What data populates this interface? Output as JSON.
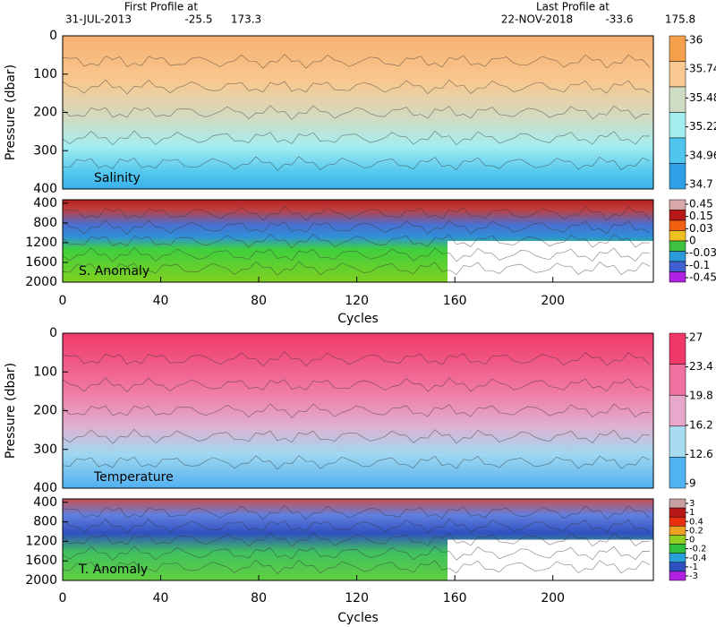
{
  "header": {
    "first_title": "First Profile at",
    "first_date": "31-JUL-2013",
    "first_lat": "-25.5",
    "first_lon": "173.3",
    "last_title": "Last Profile at",
    "last_date": "22-NOV-2018",
    "last_lat": "-33.6",
    "last_lon": "175.8"
  },
  "axes": [
    {
      "xlabel": "Cycles",
      "xlim": [
        0,
        241
      ],
      "xticks": [
        0,
        40,
        80,
        120,
        160,
        200
      ]
    },
    {
      "xlabel": "Cycles",
      "xlim": [
        0,
        241
      ],
      "xticks": [
        0,
        40,
        80,
        120,
        160,
        200
      ]
    }
  ],
  "panels": [
    {
      "label": "Salinity",
      "ylabel": "Pressure (dbar)",
      "ylim": [
        0,
        400
      ],
      "yticks": [
        0,
        100,
        200,
        300,
        400
      ],
      "colorbar": {
        "labels": [
          36,
          35.74,
          35.48,
          35.22,
          34.96,
          34.7
        ],
        "colors": [
          "#f5a04a",
          "#f8c890",
          "#cfdcc4",
          "#a4eef0",
          "#50c6ee",
          "#2f9fe6"
        ]
      }
    },
    {
      "label": "S. Anomaly",
      "ylim": [
        330,
        2000
      ],
      "yticks": [
        400,
        800,
        1200,
        1600,
        2000
      ],
      "colorbar": {
        "labels": [
          0.45,
          0.15,
          0.03,
          0,
          -0.03,
          -0.1,
          -0.45
        ],
        "colors": [
          "#d8a8a8",
          "#b81818",
          "#f06010",
          "#f0c020",
          "#40c040",
          "#2a9ad8",
          "#4060d0",
          "#b020e0"
        ]
      }
    },
    {
      "label": "Temperature",
      "ylabel": "Pressure (dbar)",
      "ylim": [
        0,
        400
      ],
      "yticks": [
        0,
        100,
        200,
        300,
        400
      ],
      "colorbar": {
        "labels": [
          27,
          23.4,
          19.8,
          16.2,
          12.6,
          9
        ],
        "colors": [
          "#f03868",
          "#f070a0",
          "#e8a8cc",
          "#a8dcf0",
          "#50b4f0"
        ]
      }
    },
    {
      "label": "T. Anomaly",
      "ylim": [
        330,
        2000
      ],
      "yticks": [
        400,
        800,
        1200,
        1600,
        2000
      ],
      "colorbar": {
        "labels": [
          3,
          1,
          0.4,
          0.2,
          0,
          -0.2,
          -0.4,
          -1,
          -3
        ],
        "colors": [
          "#c8a0a0",
          "#b81818",
          "#e83010",
          "#f0a020",
          "#90d020",
          "#30c040",
          "#2aa0d8",
          "#3050c0",
          "#b020e0"
        ]
      }
    }
  ]
}
